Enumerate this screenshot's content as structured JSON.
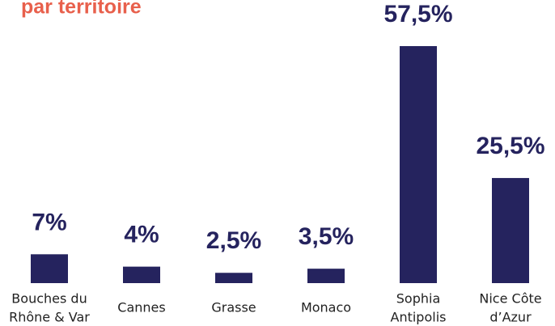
{
  "chart_data": {
    "type": "bar",
    "title": "par territoire",
    "categories": [
      [
        "Bouches du",
        "Rhône & Var"
      ],
      [
        "Cannes"
      ],
      [
        "Grasse"
      ],
      [
        "Monaco"
      ],
      [
        "Sophia",
        "Antipolis"
      ],
      [
        "Nice Côte",
        "d’Azur"
      ]
    ],
    "values": [
      7,
      4,
      2.5,
      3.5,
      57.5,
      25.5
    ],
    "value_labels": [
      "7%",
      "4%",
      "2,5%",
      "3,5%",
      "57,5%",
      "25,5%"
    ],
    "color": "#25235e"
  }
}
